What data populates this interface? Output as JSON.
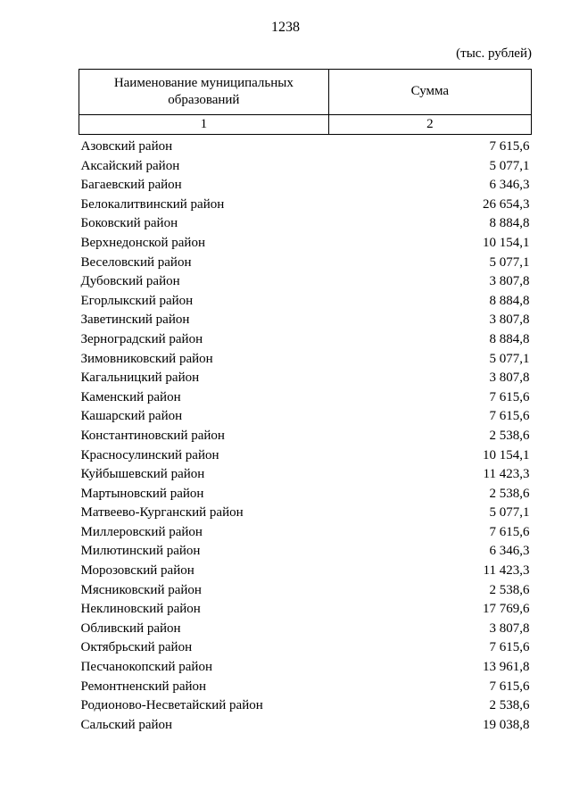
{
  "page": {
    "number": "1238",
    "unit_label": "(тыс. рублей)"
  },
  "table": {
    "header": {
      "col1": "Наименование муниципальных образований",
      "col2": "Сумма"
    },
    "col_numbers": {
      "col1": "1",
      "col2": "2"
    },
    "rows": [
      {
        "name": "Азовский район",
        "value": "7 615,6"
      },
      {
        "name": "Аксайский район",
        "value": "5 077,1"
      },
      {
        "name": "Багаевский район",
        "value": "6 346,3"
      },
      {
        "name": "Белокалитвинский район",
        "value": "26 654,3"
      },
      {
        "name": "Боковский район",
        "value": "8 884,8"
      },
      {
        "name": "Верхнедонской район",
        "value": "10 154,1"
      },
      {
        "name": "Веселовский район",
        "value": "5 077,1"
      },
      {
        "name": "Дубовский район",
        "value": "3 807,8"
      },
      {
        "name": "Егорлыкский район",
        "value": "8 884,8"
      },
      {
        "name": "Заветинский район",
        "value": "3 807,8"
      },
      {
        "name": "Зерноградский район",
        "value": "8 884,8"
      },
      {
        "name": "Зимовниковский район",
        "value": "5 077,1"
      },
      {
        "name": "Кагальницкий район",
        "value": "3 807,8"
      },
      {
        "name": "Каменский район",
        "value": "7 615,6"
      },
      {
        "name": "Кашарский район",
        "value": "7 615,6"
      },
      {
        "name": "Константиновский район",
        "value": "2 538,6"
      },
      {
        "name": "Красносулинский район",
        "value": "10 154,1"
      },
      {
        "name": "Куйбышевский район",
        "value": "11 423,3"
      },
      {
        "name": "Мартыновский район",
        "value": "2 538,6"
      },
      {
        "name": "Матвеево-Курганский район",
        "value": "5 077,1"
      },
      {
        "name": "Миллеровский район",
        "value": "7 615,6"
      },
      {
        "name": "Милютинский район",
        "value": "6 346,3"
      },
      {
        "name": "Морозовский район",
        "value": "11 423,3"
      },
      {
        "name": "Мясниковский район",
        "value": "2 538,6"
      },
      {
        "name": "Неклиновский район",
        "value": "17 769,6"
      },
      {
        "name": "Обливский район",
        "value": "3 807,8"
      },
      {
        "name": "Октябрьский район",
        "value": "7 615,6"
      },
      {
        "name": "Песчанокопский район",
        "value": "13 961,8"
      },
      {
        "name": "Ремонтненский район",
        "value": "7 615,6"
      },
      {
        "name": "Родионово-Несветайский район",
        "value": "2 538,6"
      },
      {
        "name": "Сальский район",
        "value": "19 038,8"
      }
    ]
  }
}
